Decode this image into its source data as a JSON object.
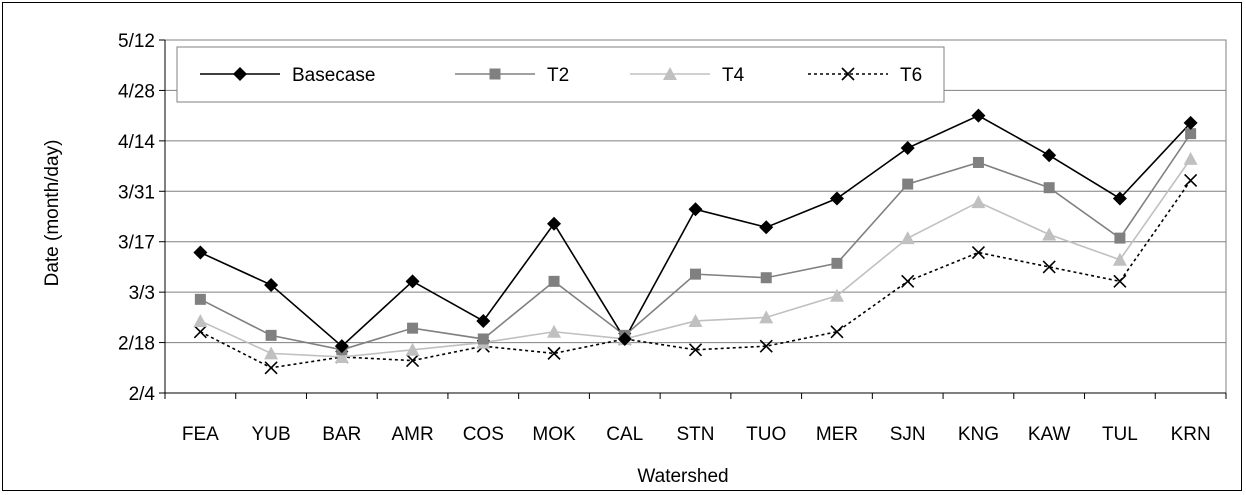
{
  "chart_data": {
    "type": "line",
    "xlabel": "Watershed",
    "ylabel": "Date (month/day)",
    "categories": [
      "FEA",
      "YUB",
      "BAR",
      "AMR",
      "COS",
      "MOK",
      "CAL",
      "STN",
      "TUO",
      "MER",
      "SJN",
      "KNG",
      "KAW",
      "TUL",
      "KRN"
    ],
    "y_ticks": [
      "2/4",
      "2/18",
      "3/3",
      "3/17",
      "3/31",
      "4/14",
      "4/28",
      "5/12"
    ],
    "y_tick_values": [
      "2000-02-04",
      "2000-02-18",
      "2000-03-03",
      "2000-03-17",
      "2000-03-31",
      "2000-04-14",
      "2000-04-28",
      "2000-05-12"
    ],
    "ylim": [
      "2000-02-04",
      "2000-05-12"
    ],
    "grid": "horizontal",
    "legend_position": "top-left",
    "series": [
      {
        "name": "Basecase",
        "marker": "diamond",
        "color": "#000000",
        "dash": "solid",
        "values": [
          "2000-03-14",
          "2000-03-05",
          "2000-02-17",
          "2000-03-06",
          "2000-02-24",
          "2000-03-22",
          "2000-02-19",
          "2000-03-26",
          "2000-03-21",
          "2000-03-29",
          "2000-04-12",
          "2000-04-21",
          "2000-04-10",
          "2000-03-29",
          "2000-04-19"
        ]
      },
      {
        "name": "T2",
        "marker": "square",
        "color": "#808080",
        "dash": "solid",
        "values": [
          "2000-03-01",
          "2000-02-20",
          "2000-02-16",
          "2000-02-22",
          "2000-02-19",
          "2000-03-06",
          "2000-02-20",
          "2000-03-08",
          "2000-03-07",
          "2000-03-11",
          "2000-04-02",
          "2000-04-08",
          "2000-04-01",
          "2000-03-18",
          "2000-04-16"
        ]
      },
      {
        "name": "T4",
        "marker": "triangle",
        "color": "#c0c0c0",
        "dash": "solid",
        "values": [
          "2000-02-24",
          "2000-02-15",
          "2000-02-14",
          "2000-02-16",
          "2000-02-18",
          "2000-02-21",
          "2000-02-19",
          "2000-02-24",
          "2000-02-25",
          "2000-03-02",
          "2000-03-18",
          "2000-03-28",
          "2000-03-19",
          "2000-03-12",
          "2000-04-09"
        ]
      },
      {
        "name": "T6",
        "marker": "x",
        "color": "#000000",
        "dash": "dotted",
        "values": [
          "2000-02-21",
          "2000-02-11",
          "2000-02-14",
          "2000-02-13",
          "2000-02-17",
          "2000-02-15",
          "2000-02-19",
          "2000-02-16",
          "2000-02-17",
          "2000-02-21",
          "2000-03-06",
          "2000-03-14",
          "2000-03-10",
          "2000-03-06",
          "2000-04-03"
        ]
      }
    ]
  }
}
